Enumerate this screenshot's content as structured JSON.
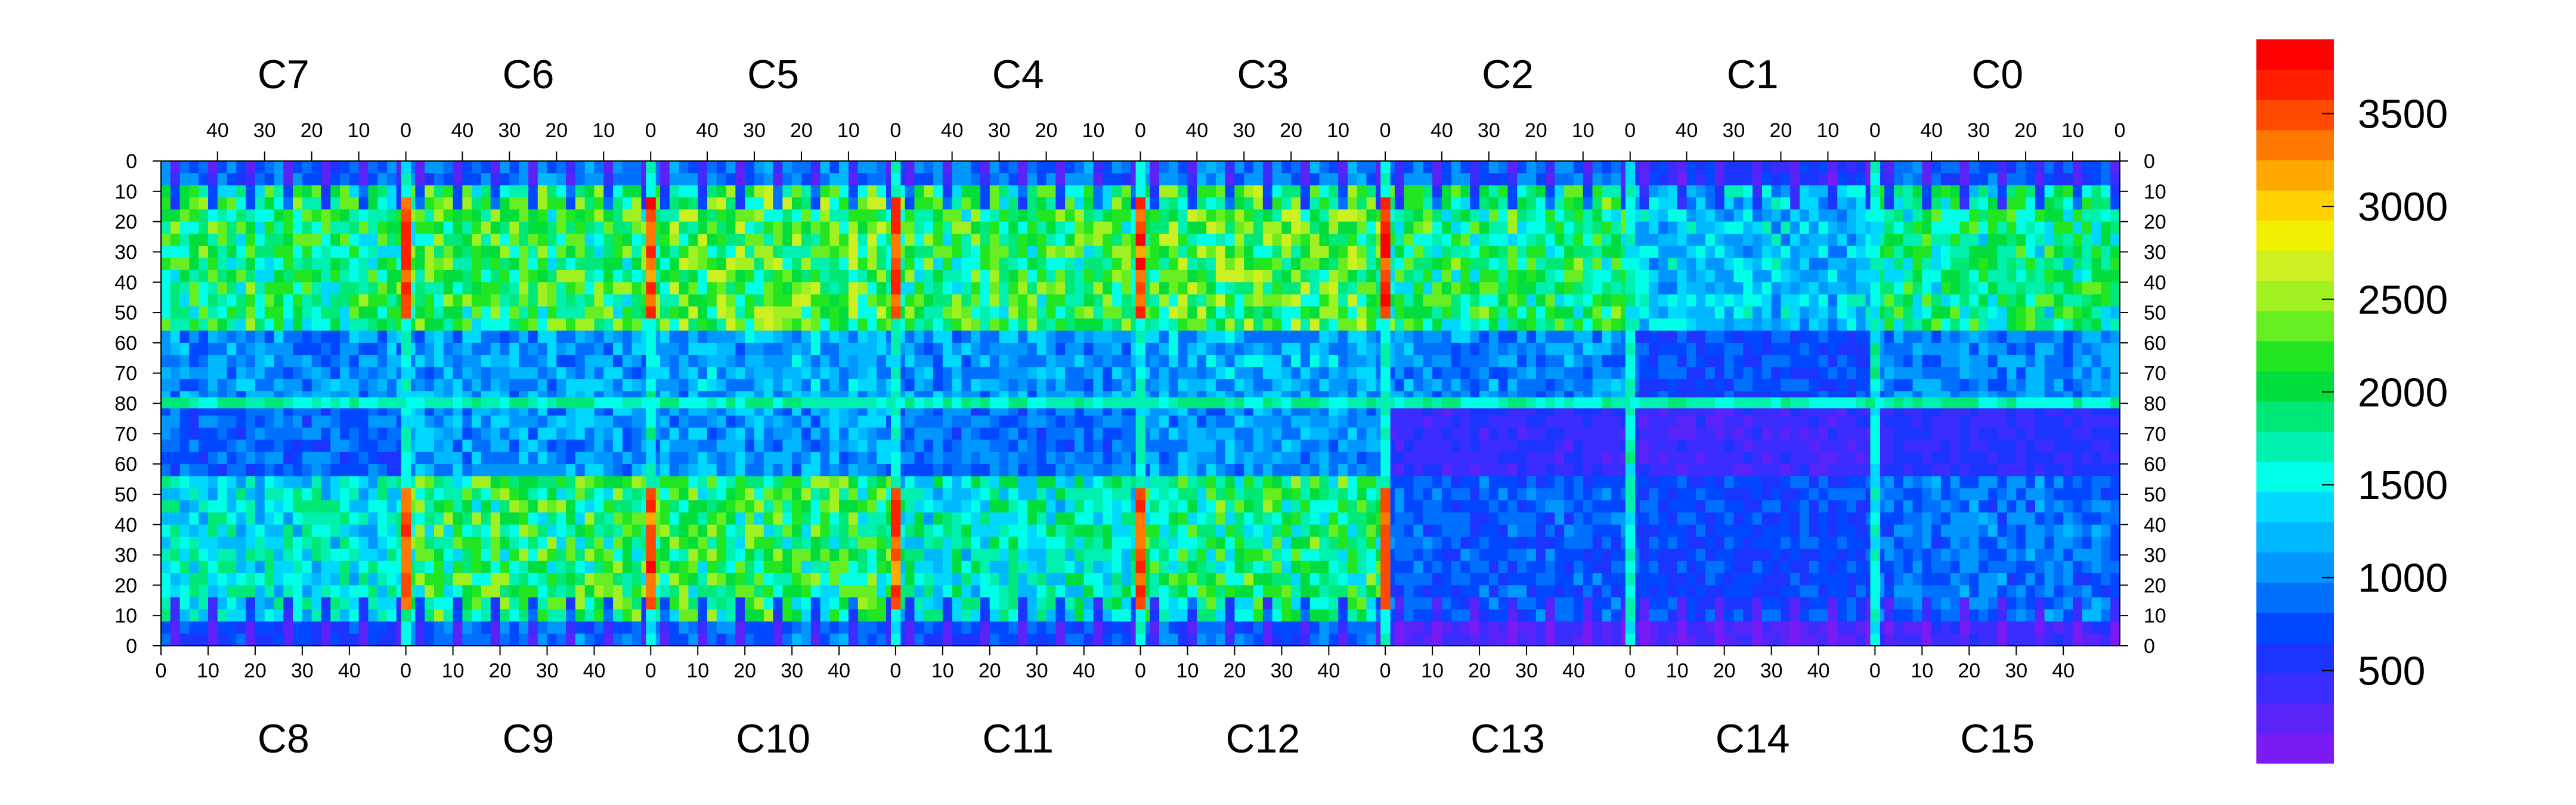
{
  "chart_data": {
    "type": "heatmap",
    "title": "",
    "xlabel": "",
    "ylabel": "",
    "grid": false,
    "legend": "right",
    "top_chip_labels": [
      "C7",
      "C6",
      "C5",
      "C4",
      "C3",
      "C2",
      "C1",
      "C0"
    ],
    "bottom_chip_labels": [
      "C8",
      "C9",
      "C10",
      "C11",
      "C12",
      "C13",
      "C14",
      "C15"
    ],
    "top_x_ticks": [
      "40",
      "30",
      "20",
      "10",
      "0"
    ],
    "bottom_x_ticks": [
      "0",
      "10",
      "20",
      "30",
      "40"
    ],
    "chip_x_range": [
      0,
      52
    ],
    "left_y_ticks": [
      "0",
      "10",
      "20",
      "30",
      "40",
      "50",
      "60",
      "70",
      "80",
      "70",
      "60",
      "50",
      "40",
      "30",
      "20",
      "10",
      "0"
    ],
    "right_y_ticks": [
      "0",
      "10",
      "20",
      "30",
      "40",
      "50",
      "60",
      "70",
      "80",
      "70",
      "60",
      "50",
      "40",
      "30",
      "20",
      "10",
      "0"
    ],
    "colorbar": {
      "range": [
        0,
        3900
      ],
      "tick_values": [
        500,
        1000,
        1500,
        2000,
        2500,
        3000,
        3500
      ],
      "tick_labels": [
        "500",
        "1000",
        "1500",
        "2000",
        "2500",
        "3000",
        "3500"
      ],
      "colors": [
        "#7b1bf4",
        "#5a24f8",
        "#3b2cff",
        "#1b35ff",
        "#0048ff",
        "#0070ff",
        "#0098ff",
        "#00b8ff",
        "#00d8ff",
        "#00ffe6",
        "#00f0b0",
        "#00e878",
        "#00dd3c",
        "#22e622",
        "#66ee22",
        "#a0f022",
        "#ccf022",
        "#f0f000",
        "#ffd200",
        "#ffa800",
        "#ff7800",
        "#ff4800",
        "#ff2000",
        "#ff0000"
      ]
    },
    "regions": [
      {
        "chip": "C7",
        "level": 1900
      },
      {
        "chip": "C6",
        "level": 2000
      },
      {
        "chip": "C5",
        "level": 2100
      },
      {
        "chip": "C4",
        "level": 2000
      },
      {
        "chip": "C3",
        "level": 2100
      },
      {
        "chip": "C2",
        "level": 1900
      },
      {
        "chip": "C1",
        "level": 1300
      },
      {
        "chip": "C0",
        "level": 1800
      },
      {
        "chip": "C8",
        "level": 1500
      },
      {
        "chip": "C9",
        "level": 2000
      },
      {
        "chip": "C10",
        "level": 2000
      },
      {
        "chip": "C11",
        "level": 1600
      },
      {
        "chip": "C12",
        "level": 1900
      },
      {
        "chip": "C13",
        "level": 800
      },
      {
        "chip": "C14",
        "level": 700
      },
      {
        "chip": "C15",
        "level": 900
      }
    ]
  }
}
